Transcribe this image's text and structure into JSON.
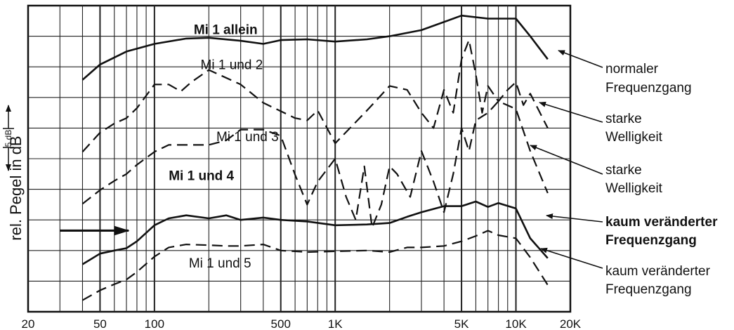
{
  "chart_data": {
    "type": "line",
    "title": "",
    "xlabel": "",
    "ylabel": "rel. Pegel in dB",
    "y_scale_label": "5 dB",
    "x_scale": "log",
    "xlim": [
      20,
      20000
    ],
    "ylim": [
      0,
      40
    ],
    "grid": true,
    "x_ticks": [
      {
        "value": 20,
        "label": "20"
      },
      {
        "value": 50,
        "label": "50"
      },
      {
        "value": 100,
        "label": "100"
      },
      {
        "value": 500,
        "label": "500"
      },
      {
        "value": 1000,
        "label": "1K"
      },
      {
        "value": 5000,
        "label": "5K"
      },
      {
        "value": 10000,
        "label": "10K"
      },
      {
        "value": 20000,
        "label": "20K"
      }
    ],
    "series": [
      {
        "name": "Mi 1 allein",
        "style": "solid",
        "label_bold": true,
        "label_at": [
          165,
          36.3
        ],
        "annotation": [
          "normaler",
          "Frequenzgang"
        ],
        "annotation_bold": false,
        "x": [
          40,
          50,
          70,
          100,
          150,
          200,
          300,
          400,
          500,
          700,
          1000,
          1500,
          2000,
          3000,
          5000,
          7000,
          10000,
          12000,
          15000
        ],
        "y": [
          30.3,
          32.3,
          34.0,
          35.0,
          35.7,
          35.8,
          35.4,
          35.0,
          35.5,
          35.6,
          35.3,
          35.6,
          36.0,
          36.8,
          38.7,
          38.3,
          38.3,
          36.0,
          33.0
        ]
      },
      {
        "name": "Mi 1 und 2",
        "style": "dashed",
        "label_bold": false,
        "label_at": [
          180,
          31.7
        ],
        "annotation": [
          "starke",
          "Welligkeit"
        ],
        "annotation_bold": false,
        "x": [
          40,
          50,
          60,
          70,
          80,
          100,
          120,
          140,
          160,
          200,
          300,
          400,
          600,
          700,
          800,
          1000,
          1500,
          2000,
          2500,
          3000,
          3500,
          4000,
          4500,
          5000,
          5500,
          6000,
          6500,
          7000,
          8000,
          9000,
          10000,
          11000,
          12000,
          15000
        ],
        "y": [
          20.9,
          23.4,
          24.6,
          25.3,
          26.6,
          29.7,
          29.7,
          28.8,
          30.0,
          31.6,
          29.7,
          27.3,
          25.3,
          25.0,
          26.3,
          22.0,
          26.3,
          29.5,
          29.0,
          26.0,
          24.0,
          29.0,
          26.0,
          33.0,
          35.5,
          31.0,
          26.0,
          29.5,
          27.5,
          29.0,
          30.0,
          27.0,
          28.5,
          24.0
        ]
      },
      {
        "name": "Mi 1 und 3",
        "style": "dashed",
        "label_bold": false,
        "label_at": [
          220,
          22.3
        ],
        "annotation": [
          "starke",
          "Welligkeit"
        ],
        "annotation_bold": false,
        "x": [
          40,
          50,
          60,
          70,
          80,
          100,
          120,
          150,
          200,
          250,
          300,
          400,
          500,
          600,
          700,
          800,
          1000,
          1150,
          1300,
          1450,
          1600,
          1800,
          2000,
          2200,
          2600,
          3000,
          3500,
          4000,
          4500,
          5000,
          5500,
          6000,
          7000,
          8000,
          10000,
          12000,
          15000
        ],
        "y": [
          14.1,
          15.9,
          17.1,
          18.0,
          19.2,
          20.9,
          21.8,
          21.8,
          21.8,
          22.4,
          23.8,
          23.8,
          23.0,
          17.9,
          14.0,
          17.0,
          20.0,
          15.0,
          12.0,
          19.0,
          11.0,
          14.0,
          19.0,
          18.0,
          15.0,
          21.0,
          17.0,
          13.0,
          18.0,
          24.0,
          21.0,
          25.0,
          26.0,
          27.5,
          26.5,
          21.0,
          15.5
        ]
      },
      {
        "name": "Mi 1 und 4",
        "style": "solid",
        "label_bold": true,
        "label_at": [
          120,
          17.2
        ],
        "annotation": [
          "kaum veränderter",
          "Frequenzgang"
        ],
        "annotation_bold": true,
        "x": [
          40,
          50,
          60,
          70,
          80,
          100,
          120,
          150,
          200,
          250,
          300,
          400,
          500,
          700,
          1000,
          1500,
          2000,
          2500,
          3000,
          4000,
          5000,
          6000,
          7000,
          8000,
          10000,
          12000,
          15000
        ],
        "y": [
          6.2,
          7.6,
          8.0,
          8.3,
          9.2,
          11.3,
          12.2,
          12.6,
          12.2,
          12.6,
          12.0,
          12.3,
          12.0,
          11.8,
          11.3,
          11.4,
          11.6,
          12.4,
          13.0,
          13.8,
          13.8,
          14.4,
          13.7,
          14.2,
          13.5,
          9.6,
          7.0
        ]
      },
      {
        "name": "Mi 1 und 5",
        "style": "dashed",
        "label_bold": false,
        "label_at": [
          155,
          5.8
        ],
        "annotation": [
          "kaum veränderter",
          "Frequenzgang"
        ],
        "annotation_bold": false,
        "x": [
          40,
          50,
          60,
          70,
          80,
          100,
          120,
          150,
          200,
          250,
          300,
          400,
          500,
          700,
          1000,
          1500,
          2000,
          2500,
          3000,
          4000,
          5000,
          6000,
          7000,
          8000,
          10000,
          12000,
          15000
        ],
        "y": [
          1.5,
          2.8,
          3.6,
          4.2,
          5.2,
          7.2,
          8.4,
          8.8,
          8.7,
          8.6,
          8.6,
          8.8,
          8.0,
          7.8,
          7.9,
          8.0,
          7.8,
          8.4,
          8.4,
          8.6,
          9.2,
          9.9,
          10.6,
          10.0,
          9.6,
          7.1,
          3.5
        ]
      }
    ],
    "reference_arrow": {
      "from": [
        30,
        10.6
      ],
      "to": [
        72,
        10.6
      ]
    }
  }
}
